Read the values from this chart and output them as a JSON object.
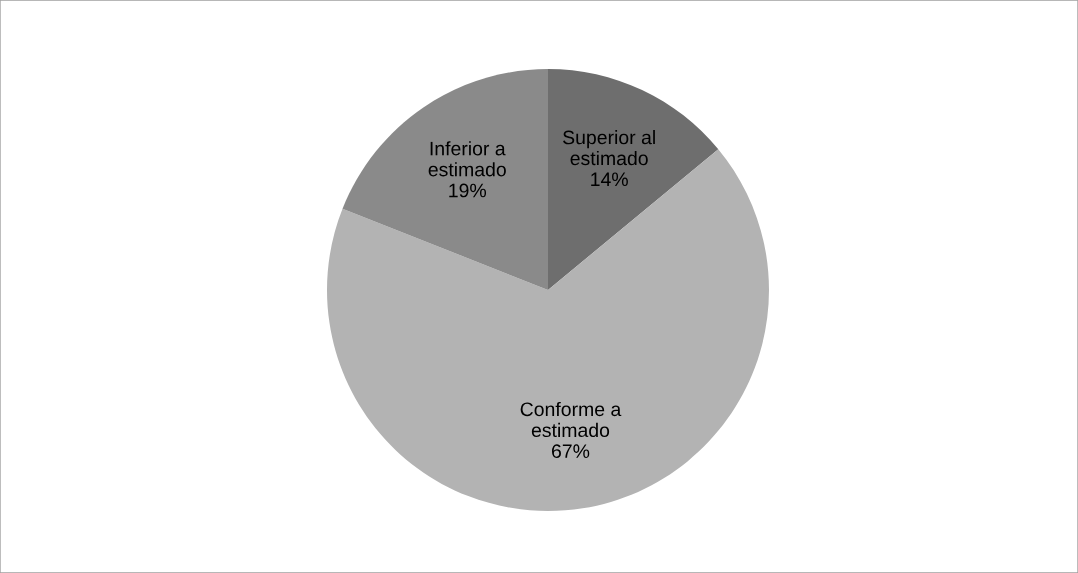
{
  "chart_data": {
    "type": "pie",
    "categories": [
      "Superior al estimado",
      "Conforme a estimado",
      "Inferior a estimado"
    ],
    "values": [
      14,
      67,
      19
    ],
    "colors": [
      "#6e6e6e",
      "#b3b3b3",
      "#8a8a8a"
    ],
    "value_labels": [
      "14%",
      "67%",
      "19%"
    ],
    "legend": false
  }
}
